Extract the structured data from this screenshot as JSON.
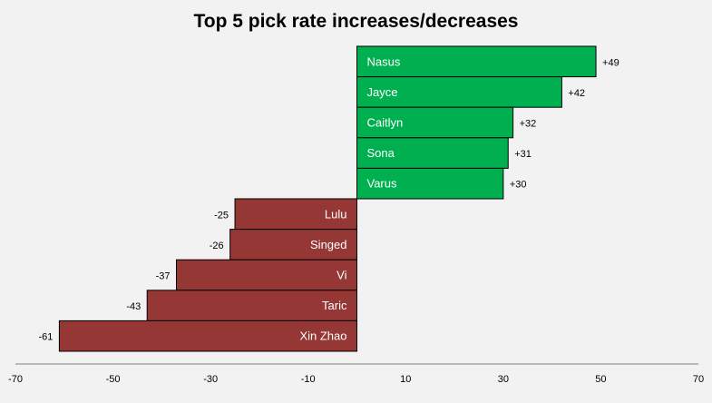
{
  "chart_data": {
    "type": "bar",
    "orientation": "horizontal",
    "title": "Top 5 pick rate increases/decreases",
    "categories": [
      "Nasus",
      "Jayce",
      "Caitlyn",
      "Sona",
      "Varus",
      "Lulu",
      "Singed",
      "Vi",
      "Taric",
      "Xin Zhao"
    ],
    "values": [
      49,
      42,
      32,
      31,
      30,
      -25,
      -26,
      -37,
      -43,
      -61
    ],
    "value_labels": [
      "+49",
      "+42",
      "+32",
      "+31",
      "+30",
      "-25",
      "-26",
      "-37",
      "-43",
      "-61"
    ],
    "xlim": [
      -70,
      70
    ],
    "xticks": [
      "-70",
      "-50",
      "-30",
      "-10",
      "10",
      "30",
      "50",
      "70"
    ],
    "xtick_values": [
      -70,
      -50,
      -30,
      -10,
      10,
      30,
      50,
      70
    ],
    "grid": false,
    "colors": {
      "positive": "#00b050",
      "negative": "#953735",
      "background": "#f2f2f2",
      "edge": "#000000"
    }
  }
}
